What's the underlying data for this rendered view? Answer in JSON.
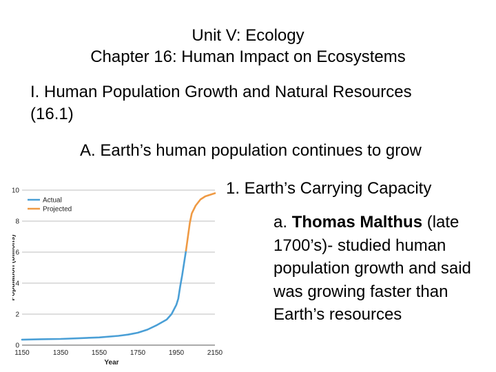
{
  "slide": {
    "title_line1": "Unit V: Ecology",
    "title_line2": "Chapter 16: Human Impact on Ecosystems",
    "heading1": "I. Human Population Growth and Natural Resources (16.1)",
    "heading2": "A. Earth’s human population continues to grow",
    "heading3": "1. Earth’s Carrying Capacity",
    "bullet_prefix": "a. ",
    "bullet_bold": "Thomas Malthus",
    "bullet_rest": " (late 1700’s)- studied human population growth and said was growing faster than Earth’s resources"
  },
  "chart_data": {
    "type": "line",
    "xlabel": "Year",
    "ylabel": "Population (billions)",
    "xlim": [
      1150,
      2150
    ],
    "ylim": [
      0,
      10
    ],
    "x_ticks": [
      1150,
      1350,
      1550,
      1750,
      1950,
      2150
    ],
    "y_ticks": [
      0,
      2,
      4,
      6,
      8,
      10
    ],
    "grid": "horizontal",
    "legend": "top-left",
    "colors": {
      "actual": "#4a9fd6",
      "projected": "#ef9a44",
      "grid": "#bdbdbd",
      "axis": "#555555"
    },
    "series": [
      {
        "name": "Actual",
        "x": [
          1150,
          1250,
          1350,
          1450,
          1550,
          1650,
          1700,
          1750,
          1800,
          1850,
          1900,
          1925,
          1950,
          1960,
          1970,
          1980,
          1990,
          2000
        ],
        "y": [
          0.35,
          0.38,
          0.4,
          0.45,
          0.5,
          0.6,
          0.68,
          0.8,
          1.0,
          1.3,
          1.65,
          2.0,
          2.6,
          3.0,
          3.8,
          4.5,
          5.3,
          6.1
        ]
      },
      {
        "name": "Projected",
        "x": [
          2000,
          2010,
          2020,
          2030,
          2050,
          2075,
          2100,
          2150
        ],
        "y": [
          6.1,
          7.0,
          7.9,
          8.5,
          9.0,
          9.4,
          9.6,
          9.8
        ]
      }
    ]
  }
}
